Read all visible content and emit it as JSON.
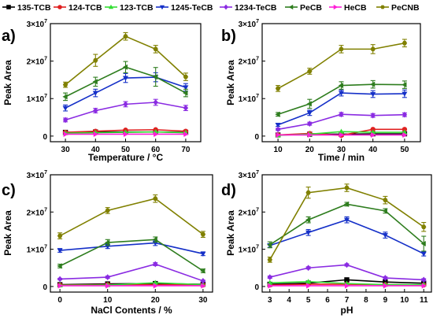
{
  "legend": [
    {
      "label": "135-TCB",
      "color": "#000000",
      "marker": "square"
    },
    {
      "label": "124-TCB",
      "color": "#e02020",
      "marker": "circle"
    },
    {
      "label": "123-TCB",
      "color": "#33dd33",
      "marker": "triangle-up"
    },
    {
      "label": "1245-TeCB",
      "color": "#1530c8",
      "marker": "triangle-down"
    },
    {
      "label": "1234-TeCB",
      "color": "#8a2be2",
      "marker": "diamond"
    },
    {
      "label": "PeCB",
      "color": "#2e7d1e",
      "marker": "triangle-left"
    },
    {
      "label": "HeCB",
      "color": "#ff1fd8",
      "marker": "triangle-right"
    },
    {
      "label": "PeCNB",
      "color": "#808000",
      "marker": "hexagon"
    }
  ],
  "chart_data": [
    {
      "panel": "a)",
      "type": "line",
      "xlabel": "Temperature / °C",
      "ylabel": "Peak Area",
      "x": [
        30,
        40,
        50,
        60,
        70
      ],
      "xticks": [
        "30",
        "40",
        "50",
        "60",
        "70"
      ],
      "xlim": [
        25,
        75
      ],
      "ylim": [
        -0.15,
        3.0
      ],
      "yticks": [
        {
          "mant": "0",
          "exp": ""
        },
        {
          "mant": "1×10",
          "exp": "7"
        },
        {
          "mant": "2×10",
          "exp": "7"
        },
        {
          "mant": "3×10",
          "exp": "7"
        }
      ],
      "series": [
        {
          "name": "135-TCB",
          "values": [
            0.1,
            0.11,
            0.11,
            0.11,
            0.1
          ]
        },
        {
          "name": "124-TCB",
          "values": [
            0.1,
            0.13,
            0.16,
            0.17,
            0.13
          ]
        },
        {
          "name": "123-TCB",
          "values": [
            0.08,
            0.09,
            0.1,
            0.11,
            0.09
          ]
        },
        {
          "name": "1245-TeCB",
          "values": [
            0.75,
            1.15,
            1.55,
            1.57,
            1.3
          ],
          "err": [
            0.08,
            0.1,
            0.12,
            0.12,
            0.1
          ]
        },
        {
          "name": "1234-TeCB",
          "values": [
            0.43,
            0.68,
            0.85,
            0.9,
            0.75
          ],
          "err": [
            0.05,
            0.06,
            0.07,
            0.08,
            0.07
          ]
        },
        {
          "name": "PeCB",
          "values": [
            1.05,
            1.45,
            1.84,
            1.58,
            1.15
          ],
          "err": [
            0.1,
            0.12,
            0.15,
            0.25,
            0.1
          ]
        },
        {
          "name": "HeCB",
          "values": [
            0.05,
            0.05,
            0.05,
            0.05,
            0.05
          ]
        },
        {
          "name": "PeCNB",
          "values": [
            1.37,
            2.02,
            2.66,
            2.32,
            1.58
          ],
          "err": [
            0.07,
            0.16,
            0.1,
            0.1,
            0.1
          ]
        }
      ]
    },
    {
      "panel": "b)",
      "type": "line",
      "xlabel": "Time / min",
      "ylabel": "Peak Area",
      "x": [
        10,
        20,
        30,
        40,
        50
      ],
      "xticks": [
        "10",
        "20",
        "30",
        "40",
        "50"
      ],
      "xlim": [
        5,
        55
      ],
      "ylim": [
        -0.15,
        3.0
      ],
      "yticks": [
        {
          "mant": "0",
          "exp": ""
        },
        {
          "mant": "1×10",
          "exp": "7"
        },
        {
          "mant": "2×10",
          "exp": "7"
        },
        {
          "mant": "3×10",
          "exp": "7"
        }
      ],
      "series": [
        {
          "name": "135-TCB",
          "values": [
            0.03,
            0.05,
            0.05,
            0.06,
            0.06
          ]
        },
        {
          "name": "124-TCB",
          "values": [
            0.03,
            0.07,
            0.02,
            0.18,
            0.18
          ]
        },
        {
          "name": "123-TCB",
          "values": [
            0.02,
            0.05,
            0.12,
            0.1,
            0.1
          ]
        },
        {
          "name": "1245-TeCB",
          "values": [
            0.3,
            0.62,
            1.15,
            1.12,
            1.13
          ],
          "err": [
            0.04,
            0.07,
            0.08,
            0.09,
            0.1
          ]
        },
        {
          "name": "1234-TeCB",
          "values": [
            0.18,
            0.33,
            0.58,
            0.55,
            0.57
          ],
          "err": [
            0.03,
            0.04,
            0.05,
            0.05,
            0.05
          ]
        },
        {
          "name": "PeCB",
          "values": [
            0.58,
            0.86,
            1.35,
            1.38,
            1.37
          ],
          "err": [
            0.05,
            0.12,
            0.1,
            0.1,
            0.1
          ]
        },
        {
          "name": "HeCB",
          "values": [
            0.03,
            0.03,
            0.03,
            0.03,
            0.03
          ]
        },
        {
          "name": "PeCNB",
          "values": [
            1.27,
            1.73,
            2.32,
            2.32,
            2.48
          ],
          "err": [
            0.08,
            0.08,
            0.1,
            0.12,
            0.1
          ]
        }
      ]
    },
    {
      "panel": "c)",
      "type": "line",
      "xlabel": "NaCl Contents / %",
      "ylabel": "Peak Area",
      "x": [
        0,
        10,
        20,
        30
      ],
      "xticks": [
        "0",
        "10",
        "20",
        "30"
      ],
      "xlim": [
        -2,
        32
      ],
      "ylim": [
        -0.15,
        3.0
      ],
      "yticks": [
        {
          "mant": "0",
          "exp": ""
        },
        {
          "mant": "1×10",
          "exp": "7"
        },
        {
          "mant": "2×10",
          "exp": "7"
        },
        {
          "mant": "3×10",
          "exp": "7"
        }
      ],
      "series": [
        {
          "name": "135-TCB",
          "values": [
            0.05,
            0.07,
            0.08,
            0.06
          ]
        },
        {
          "name": "124-TCB",
          "values": [
            0.04,
            0.05,
            0.05,
            0.04
          ]
        },
        {
          "name": "123-TCB",
          "values": [
            0.03,
            0.04,
            0.1,
            0.05
          ]
        },
        {
          "name": "1245-TeCB",
          "values": [
            0.97,
            1.08,
            1.17,
            0.88
          ],
          "err": [
            0.05,
            0.06,
            0.07,
            0.05
          ]
        },
        {
          "name": "1234-TeCB",
          "values": [
            0.2,
            0.25,
            0.6,
            0.15
          ],
          "err": [
            0.02,
            0.03,
            0.04,
            0.02
          ]
        },
        {
          "name": "PeCB",
          "values": [
            0.55,
            1.18,
            1.26,
            0.42
          ],
          "err": [
            0.05,
            0.08,
            0.07,
            0.05
          ]
        },
        {
          "name": "HeCB",
          "values": [
            0.02,
            0.02,
            0.02,
            0.02
          ]
        },
        {
          "name": "PeCNB",
          "values": [
            1.36,
            2.04,
            2.36,
            1.4
          ],
          "err": [
            0.08,
            0.08,
            0.1,
            0.08
          ]
        }
      ]
    },
    {
      "panel": "d)",
      "type": "line",
      "xlabel": "pH",
      "ylabel": "Peak Area",
      "x": [
        3,
        5,
        7,
        9,
        11
      ],
      "xticks": [
        "3",
        "4",
        "5",
        "6",
        "7",
        "8",
        "9",
        "10",
        "11"
      ],
      "xlim": [
        2.6,
        11.4
      ],
      "ylim": [
        -0.15,
        3.0
      ],
      "yticks": [
        {
          "mant": "0",
          "exp": ""
        },
        {
          "mant": "1×10",
          "exp": "7"
        },
        {
          "mant": "2×10",
          "exp": "7"
        },
        {
          "mant": "3×10",
          "exp": "7"
        }
      ],
      "series": [
        {
          "name": "135-TCB",
          "values": [
            0.06,
            0.09,
            0.18,
            0.12,
            0.09
          ]
        },
        {
          "name": "124-TCB",
          "values": [
            0.04,
            0.06,
            0.06,
            0.05,
            0.04
          ]
        },
        {
          "name": "123-TCB",
          "values": [
            0.1,
            0.13,
            0.08,
            0.05,
            0.05
          ]
        },
        {
          "name": "1245-TeCB",
          "values": [
            1.1,
            1.45,
            1.79,
            1.38,
            0.88
          ],
          "err": [
            0.05,
            0.08,
            0.08,
            0.08,
            0.06
          ]
        },
        {
          "name": "1234-TeCB",
          "values": [
            0.25,
            0.5,
            0.58,
            0.23,
            0.18
          ],
          "err": [
            0.03,
            0.03,
            0.03,
            0.03,
            0.03
          ]
        },
        {
          "name": "PeCB",
          "values": [
            1.12,
            1.79,
            2.21,
            2.03,
            1.15
          ],
          "err": [
            0.08,
            0.08,
            0.05,
            0.06,
            0.2
          ]
        },
        {
          "name": "HeCB",
          "values": [
            0.02,
            0.02,
            0.02,
            0.02,
            0.02
          ]
        },
        {
          "name": "PeCNB",
          "values": [
            0.72,
            2.52,
            2.65,
            2.32,
            1.6
          ],
          "err": [
            0.07,
            0.15,
            0.1,
            0.1,
            0.12
          ]
        }
      ]
    }
  ]
}
